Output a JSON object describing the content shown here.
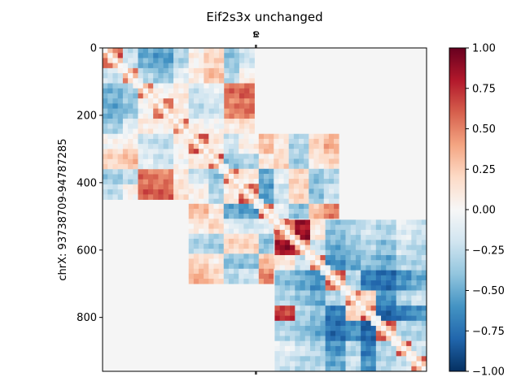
{
  "chart_data": {
    "type": "heatmap",
    "title": "Eif2s3x unchanged",
    "ylabel": "chrX: 93738709-94787285",
    "xlabel": "",
    "top_tick_labels": [
      "s",
      "e"
    ],
    "top_tick_positions": [
      453,
      456
    ],
    "bottom_tick_positions": [
      453,
      456
    ],
    "matrix_extent": [
      0,
      960
    ],
    "y_ticks": [
      0,
      200,
      400,
      600,
      800
    ],
    "grid": false,
    "colormap": "RdBu_r",
    "missing_color": "#f5f5f5",
    "blocks": [
      {
        "start": 0,
        "end": 450,
        "pattern": [
          [
            0.6,
            -0.2,
            -0.5,
            -0.55,
            -0.3,
            0.05,
            0.2,
            -0.4,
            -0.2
          ],
          [
            -0.2,
            0.6,
            -0.3,
            -0.4,
            -0.1,
            0.1,
            0.3,
            -0.3,
            0.05
          ],
          [
            -0.45,
            -0.35,
            0.6,
            0.0,
            0.1,
            -0.2,
            -0.1,
            0.55,
            0.6
          ],
          [
            -0.5,
            -0.4,
            0.0,
            0.6,
            0.1,
            -0.25,
            -0.2,
            0.5,
            0.55
          ],
          [
            -0.35,
            -0.1,
            0.1,
            0.05,
            0.6,
            0.05,
            0.0,
            0.1,
            0.15
          ],
          [
            0.0,
            0.05,
            -0.2,
            -0.25,
            0.05,
            0.6,
            0.15,
            -0.15,
            -0.2
          ],
          [
            0.2,
            0.3,
            -0.1,
            -0.2,
            0.0,
            0.15,
            0.6,
            0.0,
            0.0
          ],
          [
            -0.35,
            -0.25,
            0.55,
            0.5,
            0.1,
            -0.15,
            0.0,
            0.6,
            0.4
          ],
          [
            -0.25,
            0.05,
            0.6,
            0.6,
            0.15,
            -0.2,
            0.0,
            0.4,
            0.6
          ]
        ]
      },
      {
        "start": 255,
        "end": 700,
        "pattern": [
          [
            0.6,
            0.1,
            -0.2,
            0.05,
            0.3,
            0.1,
            -0.3,
            0.2,
            0.35
          ],
          [
            0.1,
            0.6,
            -0.4,
            -0.3,
            0.1,
            0.2,
            -0.35,
            0.1,
            0.2
          ],
          [
            -0.2,
            -0.4,
            0.6,
            0.1,
            -0.5,
            -0.1,
            0.2,
            -0.4,
            -0.3
          ],
          [
            0.05,
            -0.3,
            0.1,
            0.6,
            -0.55,
            -0.2,
            0.2,
            -0.4,
            -0.2
          ],
          [
            0.3,
            0.1,
            -0.5,
            -0.55,
            0.6,
            -0.1,
            -0.4,
            0.3,
            0.5
          ],
          [
            0.1,
            0.2,
            -0.1,
            -0.2,
            -0.1,
            0.6,
            0.0,
            0.2,
            0.1
          ],
          [
            -0.3,
            -0.35,
            0.2,
            0.2,
            -0.4,
            0.0,
            0.6,
            -0.2,
            -0.1
          ],
          [
            0.2,
            0.1,
            -0.4,
            -0.4,
            0.3,
            0.2,
            -0.2,
            0.6,
            0.5
          ],
          [
            0.35,
            0.2,
            -0.3,
            -0.2,
            0.5,
            0.1,
            -0.1,
            0.5,
            0.6
          ]
        ]
      },
      {
        "start": 510,
        "end": 960,
        "pattern": [
          [
            0.6,
            0.85,
            0.1,
            -0.4,
            -0.3,
            -0.2,
            -0.3,
            -0.1,
            -0.2
          ],
          [
            0.85,
            0.6,
            -0.2,
            -0.5,
            -0.4,
            -0.3,
            -0.4,
            -0.2,
            -0.3
          ],
          [
            0.1,
            -0.2,
            0.6,
            -0.6,
            -0.5,
            -0.4,
            -0.5,
            -0.3,
            -0.3
          ],
          [
            -0.4,
            -0.5,
            -0.6,
            0.6,
            -0.3,
            -0.7,
            -0.75,
            -0.6,
            -0.5
          ],
          [
            -0.3,
            -0.4,
            -0.5,
            -0.3,
            0.6,
            0.2,
            -0.6,
            -0.3,
            -0.2
          ],
          [
            0.7,
            -0.3,
            -0.4,
            -0.7,
            0.2,
            0.6,
            -0.8,
            -0.7,
            -0.6
          ],
          [
            -0.3,
            -0.4,
            -0.5,
            -0.75,
            -0.6,
            -0.8,
            0.6,
            -0.3,
            -0.3
          ],
          [
            -0.1,
            -0.2,
            -0.3,
            -0.6,
            -0.3,
            -0.7,
            -0.3,
            0.6,
            -0.2
          ],
          [
            -0.2,
            -0.3,
            -0.3,
            -0.5,
            -0.2,
            -0.6,
            -0.3,
            -0.2,
            0.6
          ]
        ]
      }
    ],
    "colorbar": {
      "min": -1.0,
      "max": 1.0,
      "ticks": [
        1.0,
        0.75,
        0.5,
        0.25,
        0.0,
        -0.25,
        -0.5,
        -0.75,
        -1.0
      ],
      "tick_labels": [
        "1.00",
        "0.75",
        "0.50",
        "0.25",
        "0.00",
        "−0.25",
        "−0.50",
        "−0.75",
        "−1.00"
      ]
    }
  }
}
